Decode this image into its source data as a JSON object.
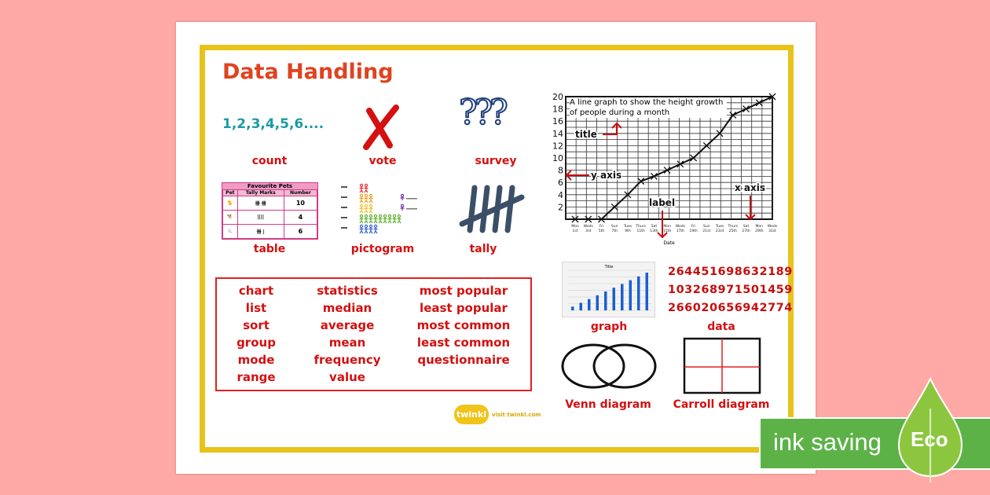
{
  "poster": {
    "title": "Data Handling",
    "count_sample": "1,2,3,4,5,6....",
    "labels": {
      "count": "count",
      "vote": "vote",
      "survey": "survey",
      "table": "table",
      "pictogram": "pictogram",
      "tally": "tally",
      "graph": "graph",
      "data": "data",
      "venn": "Venn diagram",
      "carroll": "Carroll diagram"
    },
    "survey_glyph": "???",
    "vocabulary": [
      [
        "chart",
        "list",
        "sort",
        "group",
        "mode",
        "range"
      ],
      [
        "statistics",
        "median",
        "average",
        "mean",
        "frequency",
        "value"
      ],
      [
        "most popular",
        "least popular",
        "most common",
        "least common",
        "questionnaire"
      ]
    ],
    "data_numbers": [
      "264451698632189",
      "103268971501459",
      "266020656942774"
    ],
    "pets_table": {
      "title": "Favourite Pets",
      "headers": [
        "Pet",
        "Tally Marks",
        "Number"
      ],
      "rows": [
        {
          "pet": "cat",
          "tally": "卌 卌",
          "number": "10"
        },
        {
          "pet": "dog",
          "tally": "||||",
          "number": "4"
        },
        {
          "pet": "mouse",
          "tally": "卌 |",
          "number": "6"
        }
      ]
    },
    "annotations": {
      "title": "title",
      "y_axis": "y axis",
      "x_axis": "x axis",
      "label": "label"
    },
    "logo": {
      "brand": "twinkl",
      "url_text": "visit twinkl.com"
    },
    "colors": {
      "accent_red": "#d41010",
      "frame_gold": "#e8c31a",
      "background": "#ffa9a6",
      "eco_green": "#5cb247"
    }
  },
  "eco_badge": {
    "text": "ink saving",
    "badge": "Eco"
  },
  "chart_data": [
    {
      "type": "line",
      "title": "A line graph to show the height growth of people during a month",
      "xlabel": "Date",
      "ylabel": "",
      "categories": [
        "Mon 1st",
        "Weds 3rd",
        "Fri 5th",
        "Sun 7th",
        "Tues 9th",
        "Thurs 11th",
        "Sat 13th",
        "Mon 15th",
        "Weds 17th",
        "Fri 19th",
        "Sun 21st",
        "Tues 23rd",
        "Thurs 25th",
        "Sat 27th",
        "Mon 29th",
        "Weds 31st"
      ],
      "values": [
        0,
        0,
        0,
        2,
        4,
        6.2,
        7,
        8,
        9,
        10,
        12,
        14,
        17,
        18,
        19,
        20
      ],
      "yticks": [
        2,
        4,
        6,
        8,
        10,
        12,
        14,
        16,
        18,
        20
      ],
      "ylim": [
        0,
        20
      ],
      "grid": true,
      "marker": "x"
    },
    {
      "type": "bar",
      "title": "Title",
      "values": [
        1,
        2,
        3,
        4,
        5,
        6,
        7,
        8,
        9,
        10
      ],
      "grid": true
    }
  ]
}
